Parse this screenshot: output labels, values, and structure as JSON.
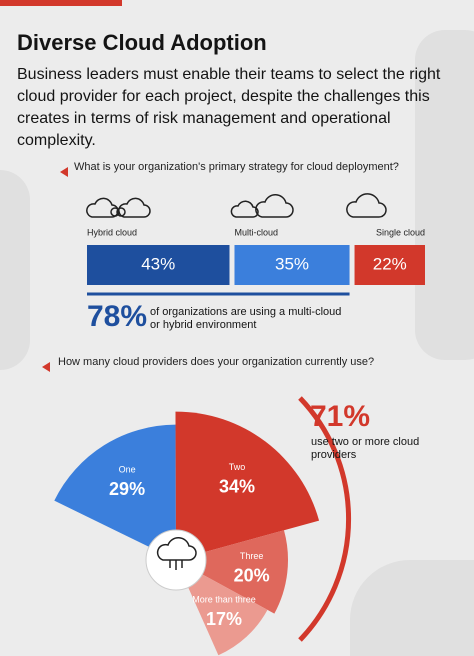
{
  "header": {
    "title": "Diverse Cloud Adoption",
    "subtitle": "Business leaders must enable their teams to select the right cloud provider for each project, despite the challenges this creates in terms of risk management and operational complexity."
  },
  "chart_data": [
    {
      "type": "bar",
      "title": "What is your organization's primary strategy for cloud deployment?",
      "categories": [
        "Hybrid cloud",
        "Multi-cloud",
        "Single cloud"
      ],
      "values": [
        43,
        35,
        22
      ],
      "value_labels": [
        "43%",
        "35%",
        "22%"
      ],
      "colors": [
        "#1e4f9e",
        "#3b7fdc",
        "#d2382b"
      ],
      "annotations": [
        "78%",
        "of organizations are using a multi-cloud or hybrid environment"
      ]
    },
    {
      "type": "rose",
      "title": "How many cloud providers does your organization currently use?",
      "categories": [
        "One",
        "Two",
        "Three",
        "More than three"
      ],
      "values": [
        29,
        34,
        20,
        17
      ],
      "value_labels": [
        "29%",
        "34%",
        "20%",
        "17%"
      ],
      "colors": [
        "#3b7fdc",
        "#d2382b",
        "#df685c",
        "#eb9a90"
      ],
      "annotations": [
        "71%",
        "use two or more cloud providers"
      ]
    }
  ]
}
